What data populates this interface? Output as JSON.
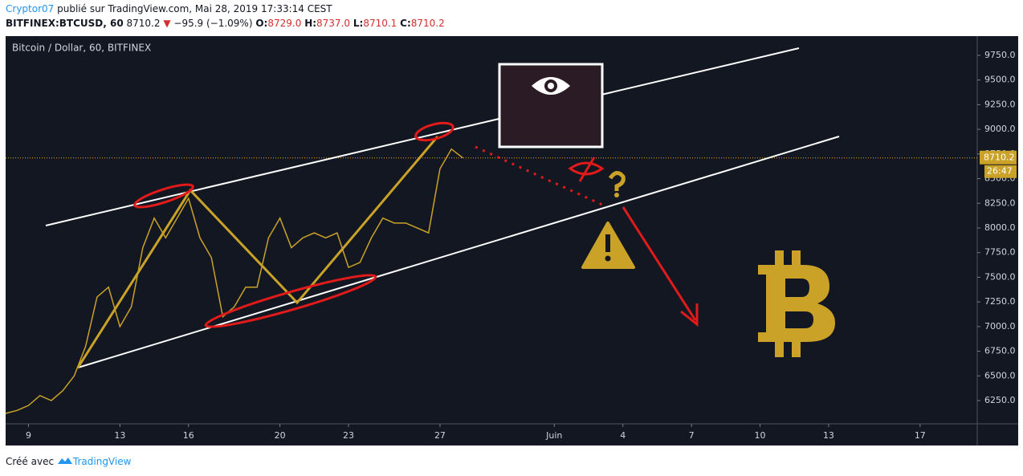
{
  "header": {
    "author": "Cryptor07",
    "published": "publié sur TradingView.com, Mai 28, 2019 17:33:14 CEST",
    "symbol": "BITFINEX:BTCUSD, 60",
    "last": "8710.2",
    "change": "−95.9 (−1.09%)",
    "open_label": "O:",
    "open": "8729.0",
    "high_label": "H:",
    "high": "8737.0",
    "low_label": "L:",
    "low": "8710.1",
    "close_label": "C:",
    "close": "8710.2"
  },
  "footer": {
    "made_with": "Créé avec",
    "brand": "TradingView"
  },
  "chart_data": {
    "type": "line",
    "title": "Bitcoin / Dollar, 60, BITFINEX",
    "color": "#c9a227",
    "x": [
      8,
      8.5,
      9,
      9.5,
      10,
      10.5,
      11,
      11.5,
      12,
      12.5,
      13,
      13.5,
      14,
      14.5,
      15,
      15.5,
      16,
      16.5,
      17,
      17.5,
      18,
      18.5,
      19,
      19.5,
      20,
      20.5,
      21,
      21.5,
      22,
      22.5,
      23,
      23.5,
      24,
      24.5,
      25,
      25.5,
      26,
      26.5,
      27,
      27.5,
      28
    ],
    "values": [
      6120,
      6150,
      6200,
      6300,
      6250,
      6350,
      6500,
      6800,
      7300,
      7400,
      7000,
      7200,
      7800,
      8100,
      7900,
      8100,
      8300,
      7900,
      7700,
      7100,
      7200,
      7400,
      7400,
      7900,
      8100,
      7800,
      7900,
      7950,
      7900,
      7950,
      7600,
      7650,
      7900,
      8100,
      8050,
      8050,
      8000,
      7950,
      8600,
      8800,
      8710.2
    ],
    "xlim": [
      8,
      50.5
    ],
    "xticks": [
      9,
      13,
      16,
      20,
      23,
      27,
      {
        "value": 32,
        "label": "Juin"
      },
      {
        "value": 35,
        "label": "4"
      },
      {
        "value": 38,
        "label": "7"
      },
      {
        "value": 41,
        "label": "10"
      },
      {
        "value": 44,
        "label": "13"
      },
      {
        "value": 48,
        "label": "17"
      }
    ],
    "ylim": [
      6014,
      9945
    ],
    "yticks": [
      {
        "value": 6250,
        "label": "6250.0"
      },
      {
        "value": 6500,
        "label": "6500.0"
      },
      {
        "value": 6750,
        "label": "6750.0"
      },
      {
        "value": 7000,
        "label": "7000.0"
      },
      {
        "value": 7250,
        "label": "7250.0"
      },
      {
        "value": 7500,
        "label": "7500.0"
      },
      {
        "value": 7750,
        "label": "7750.0"
      },
      {
        "value": 8000,
        "label": "8000.0"
      },
      {
        "value": 8250,
        "label": "8250.0"
      },
      {
        "value": 8500,
        "label": "8500.0"
      },
      {
        "value": 8750,
        "label": "8750.0"
      },
      {
        "value": 9000,
        "label": "9000.0"
      },
      {
        "value": 9250,
        "label": "9250.0"
      },
      {
        "value": 9500,
        "label": "9500.0"
      },
      {
        "value": 9750,
        "label": "9750.0"
      }
    ],
    "price_tag": "8710.2",
    "countdown": "26:47",
    "grid": false
  }
}
